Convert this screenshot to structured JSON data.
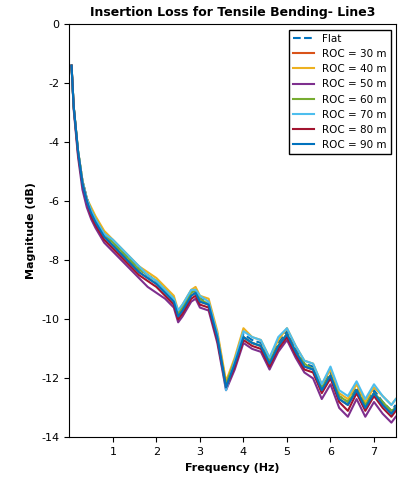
{
  "chart_data": {
    "type": "line",
    "title": "Insertion Loss for Tensile Bending- Line3",
    "x_label": "Frequency (Hz)",
    "y_label": "Magnitude (dB)",
    "x": [
      0.05,
      0.1,
      0.2,
      0.3,
      0.4,
      0.5,
      0.6,
      0.8,
      1.0,
      1.2,
      1.4,
      1.6,
      1.8,
      2.0,
      2.2,
      2.4,
      2.5,
      2.6,
      2.8,
      2.9,
      3.0,
      3.2,
      3.4,
      3.6,
      3.8,
      4.0,
      4.2,
      4.4,
      4.6,
      4.8,
      5.0,
      5.2,
      5.4,
      5.6,
      5.8,
      6.0,
      6.2,
      6.4,
      6.6,
      6.8,
      7.0,
      7.2,
      7.4,
      7.5
    ],
    "series": [
      {
        "name": "Flat",
        "color": "#0072BD",
        "line_style": "dashed",
        "values": [
          -1.4,
          -2.8,
          -4.3,
          -5.3,
          -5.9,
          -6.3,
          -6.6,
          -7.1,
          -7.4,
          -7.7,
          -8.0,
          -8.3,
          -8.5,
          -8.7,
          -9.0,
          -9.3,
          -9.8,
          -9.6,
          -9.1,
          -9.0,
          -9.3,
          -9.4,
          -10.5,
          -12.2,
          -11.4,
          -10.5,
          -10.7,
          -10.8,
          -11.4,
          -10.8,
          -10.4,
          -11.0,
          -11.5,
          -11.6,
          -12.3,
          -11.8,
          -12.6,
          -12.8,
          -12.3,
          -12.9,
          -12.4,
          -12.8,
          -13.1,
          -12.9
        ]
      },
      {
        "name": "ROC = 30 m",
        "color": "#D95319",
        "line_style": "solid",
        "values": [
          -1.4,
          -2.8,
          -4.3,
          -5.3,
          -5.9,
          -6.4,
          -6.7,
          -7.2,
          -7.5,
          -7.8,
          -8.1,
          -8.4,
          -8.6,
          -8.8,
          -9.1,
          -9.4,
          -9.9,
          -9.7,
          -9.2,
          -9.1,
          -9.4,
          -9.5,
          -10.6,
          -12.3,
          -11.5,
          -10.6,
          -10.8,
          -10.9,
          -11.5,
          -10.9,
          -10.5,
          -11.1,
          -11.6,
          -11.7,
          -12.4,
          -11.9,
          -12.7,
          -12.9,
          -12.4,
          -13.0,
          -12.5,
          -12.9,
          -13.2,
          -13.0
        ]
      },
      {
        "name": "ROC = 40 m",
        "color": "#EDB120",
        "line_style": "solid",
        "values": [
          -1.4,
          -2.8,
          -4.3,
          -5.3,
          -5.9,
          -6.2,
          -6.5,
          -7.0,
          -7.3,
          -7.6,
          -7.9,
          -8.2,
          -8.4,
          -8.6,
          -8.9,
          -9.2,
          -9.7,
          -9.5,
          -9.0,
          -8.9,
          -9.2,
          -9.3,
          -10.4,
          -12.1,
          -11.3,
          -10.3,
          -10.6,
          -10.7,
          -11.3,
          -10.7,
          -10.3,
          -10.9,
          -11.4,
          -11.5,
          -12.2,
          -11.7,
          -12.5,
          -12.7,
          -12.2,
          -12.8,
          -12.3,
          -12.6,
          -12.9,
          -12.7
        ]
      },
      {
        "name": "ROC = 50 m",
        "color": "#7E2F8E",
        "line_style": "solid",
        "values": [
          -1.4,
          -2.9,
          -4.5,
          -5.6,
          -6.2,
          -6.6,
          -6.9,
          -7.4,
          -7.7,
          -8.0,
          -8.3,
          -8.6,
          -8.9,
          -9.1,
          -9.3,
          -9.6,
          -10.1,
          -9.9,
          -9.4,
          -9.3,
          -9.6,
          -9.7,
          -10.8,
          -12.4,
          -11.7,
          -10.8,
          -11.0,
          -11.1,
          -11.7,
          -11.1,
          -10.7,
          -11.3,
          -11.8,
          -12.0,
          -12.7,
          -12.2,
          -13.0,
          -13.3,
          -12.7,
          -13.3,
          -12.8,
          -13.2,
          -13.5,
          -13.3
        ]
      },
      {
        "name": "ROC = 60 m",
        "color": "#77AC30",
        "line_style": "solid",
        "values": [
          -1.4,
          -2.8,
          -4.3,
          -5.3,
          -5.9,
          -6.3,
          -6.6,
          -7.1,
          -7.4,
          -7.7,
          -8.0,
          -8.3,
          -8.5,
          -8.7,
          -9.0,
          -9.3,
          -9.8,
          -9.6,
          -9.1,
          -9.0,
          -9.3,
          -9.5,
          -10.6,
          -12.2,
          -11.4,
          -10.6,
          -10.8,
          -10.9,
          -11.4,
          -10.9,
          -10.5,
          -11.1,
          -11.5,
          -11.7,
          -12.3,
          -11.9,
          -12.6,
          -12.8,
          -12.4,
          -12.9,
          -12.5,
          -12.8,
          -13.1,
          -13.0
        ]
      },
      {
        "name": "ROC = 70 m",
        "color": "#4DBEEE",
        "line_style": "solid",
        "values": [
          -1.4,
          -2.8,
          -4.3,
          -5.3,
          -5.9,
          -6.3,
          -6.6,
          -7.1,
          -7.3,
          -7.6,
          -7.9,
          -8.2,
          -8.5,
          -8.7,
          -9.0,
          -9.3,
          -9.7,
          -9.5,
          -9.0,
          -9.0,
          -9.2,
          -9.4,
          -10.5,
          -12.4,
          -11.4,
          -10.4,
          -10.6,
          -10.7,
          -11.3,
          -10.6,
          -10.3,
          -10.9,
          -11.4,
          -11.5,
          -12.2,
          -11.6,
          -12.4,
          -12.6,
          -12.1,
          -12.7,
          -12.2,
          -12.6,
          -12.9,
          -12.7
        ]
      },
      {
        "name": "ROC = 80 m",
        "color": "#A2142F",
        "line_style": "solid",
        "values": [
          -1.4,
          -2.8,
          -4.4,
          -5.4,
          -6.0,
          -6.5,
          -6.8,
          -7.3,
          -7.6,
          -7.9,
          -8.2,
          -8.5,
          -8.7,
          -8.9,
          -9.2,
          -9.5,
          -10.0,
          -9.8,
          -9.3,
          -9.2,
          -9.5,
          -9.6,
          -10.7,
          -12.3,
          -11.6,
          -10.7,
          -10.9,
          -11.0,
          -11.6,
          -11.0,
          -10.6,
          -11.2,
          -11.7,
          -11.8,
          -12.5,
          -12.0,
          -12.8,
          -13.1,
          -12.5,
          -13.1,
          -12.6,
          -13.0,
          -13.3,
          -13.1
        ]
      },
      {
        "name": "ROC = 90 m",
        "color": "#0072BD",
        "line_style": "solid",
        "values": [
          -1.4,
          -2.8,
          -4.3,
          -5.4,
          -6.0,
          -6.4,
          -6.7,
          -7.2,
          -7.5,
          -7.8,
          -8.1,
          -8.4,
          -8.6,
          -8.8,
          -9.1,
          -9.4,
          -9.9,
          -9.7,
          -9.2,
          -9.1,
          -9.4,
          -9.5,
          -10.6,
          -12.3,
          -11.5,
          -10.6,
          -10.8,
          -10.9,
          -11.5,
          -10.9,
          -10.5,
          -11.1,
          -11.6,
          -11.7,
          -12.4,
          -11.9,
          -12.7,
          -12.9,
          -12.4,
          -13.0,
          -12.5,
          -12.9,
          -13.2,
          -13.0
        ]
      }
    ],
    "xlim": [
      0,
      7.5
    ],
    "xticks": [
      1,
      2,
      3,
      4,
      5,
      6,
      7
    ],
    "ylim": [
      -14,
      0
    ],
    "yticks": [
      -14,
      -12,
      -10,
      -8,
      -6,
      -4,
      -2,
      0
    ],
    "grid": false,
    "legend": "upper right"
  }
}
